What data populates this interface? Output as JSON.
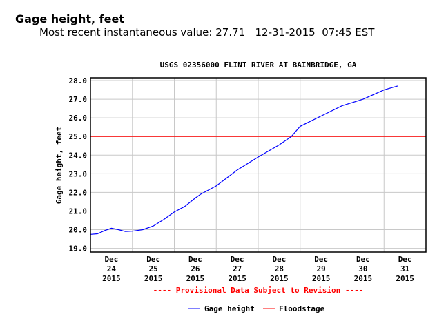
{
  "header": {
    "title": "Gage height, feet",
    "subtitle_label": "Most recent instantaneous value:",
    "value": "27.71",
    "date": "12-31-2015",
    "time": "07:45 EST"
  },
  "chart_data": {
    "type": "line",
    "title": "USGS 02356000 FLINT RIVER AT BAINBRIDGE, GA",
    "ylabel": "Gage height, feet",
    "xlabel": "",
    "ylim": [
      18.8,
      28.15
    ],
    "xlim": [
      "2015-12-24T00:00",
      "2016-01-01T00:00"
    ],
    "yticks": [
      "19.0",
      "20.0",
      "21.0",
      "22.0",
      "23.0",
      "24.0",
      "25.0",
      "26.0",
      "27.0",
      "28.0"
    ],
    "xticks": [
      {
        "day": "Dec",
        "date": "24",
        "year": "2015"
      },
      {
        "day": "Dec",
        "date": "25",
        "year": "2015"
      },
      {
        "day": "Dec",
        "date": "26",
        "year": "2015"
      },
      {
        "day": "Dec",
        "date": "27",
        "year": "2015"
      },
      {
        "day": "Dec",
        "date": "28",
        "year": "2015"
      },
      {
        "day": "Dec",
        "date": "29",
        "year": "2015"
      },
      {
        "day": "Dec",
        "date": "30",
        "year": "2015"
      },
      {
        "day": "Dec",
        "date": "31",
        "year": "2015"
      }
    ],
    "grid": true,
    "note": "---- Provisional Data Subject to Revision ----",
    "series": [
      {
        "name": "Gage height",
        "color": "#0000ff",
        "points": [
          [
            "2015-12-24T00:00",
            19.75
          ],
          [
            "2015-12-24T04:00",
            19.78
          ],
          [
            "2015-12-24T08:00",
            19.95
          ],
          [
            "2015-12-24T12:00",
            20.08
          ],
          [
            "2015-12-24T16:00",
            20.0
          ],
          [
            "2015-12-24T20:00",
            19.9
          ],
          [
            "2015-12-25T00:00",
            19.92
          ],
          [
            "2015-12-25T06:00",
            20.0
          ],
          [
            "2015-12-25T12:00",
            20.2
          ],
          [
            "2015-12-25T18:00",
            20.55
          ],
          [
            "2015-12-26T00:00",
            20.95
          ],
          [
            "2015-12-26T06:00",
            21.25
          ],
          [
            "2015-12-26T12:00",
            21.7
          ],
          [
            "2015-12-26T15:00",
            21.9
          ],
          [
            "2015-12-27T00:00",
            22.35
          ],
          [
            "2015-12-27T12:00",
            23.2
          ],
          [
            "2015-12-28T00:00",
            23.9
          ],
          [
            "2015-12-28T12:00",
            24.55
          ],
          [
            "2015-12-28T19:00",
            25.0
          ],
          [
            "2015-12-29T00:00",
            25.55
          ],
          [
            "2015-12-29T12:00",
            26.1
          ],
          [
            "2015-12-30T00:00",
            26.65
          ],
          [
            "2015-12-30T12:00",
            27.0
          ],
          [
            "2015-12-31T00:00",
            27.5
          ],
          [
            "2015-12-31T07:45",
            27.71
          ]
        ]
      },
      {
        "name": "Floodstage",
        "color": "#ff0000",
        "value": 25.0
      }
    ],
    "legend_position": "bottom"
  }
}
